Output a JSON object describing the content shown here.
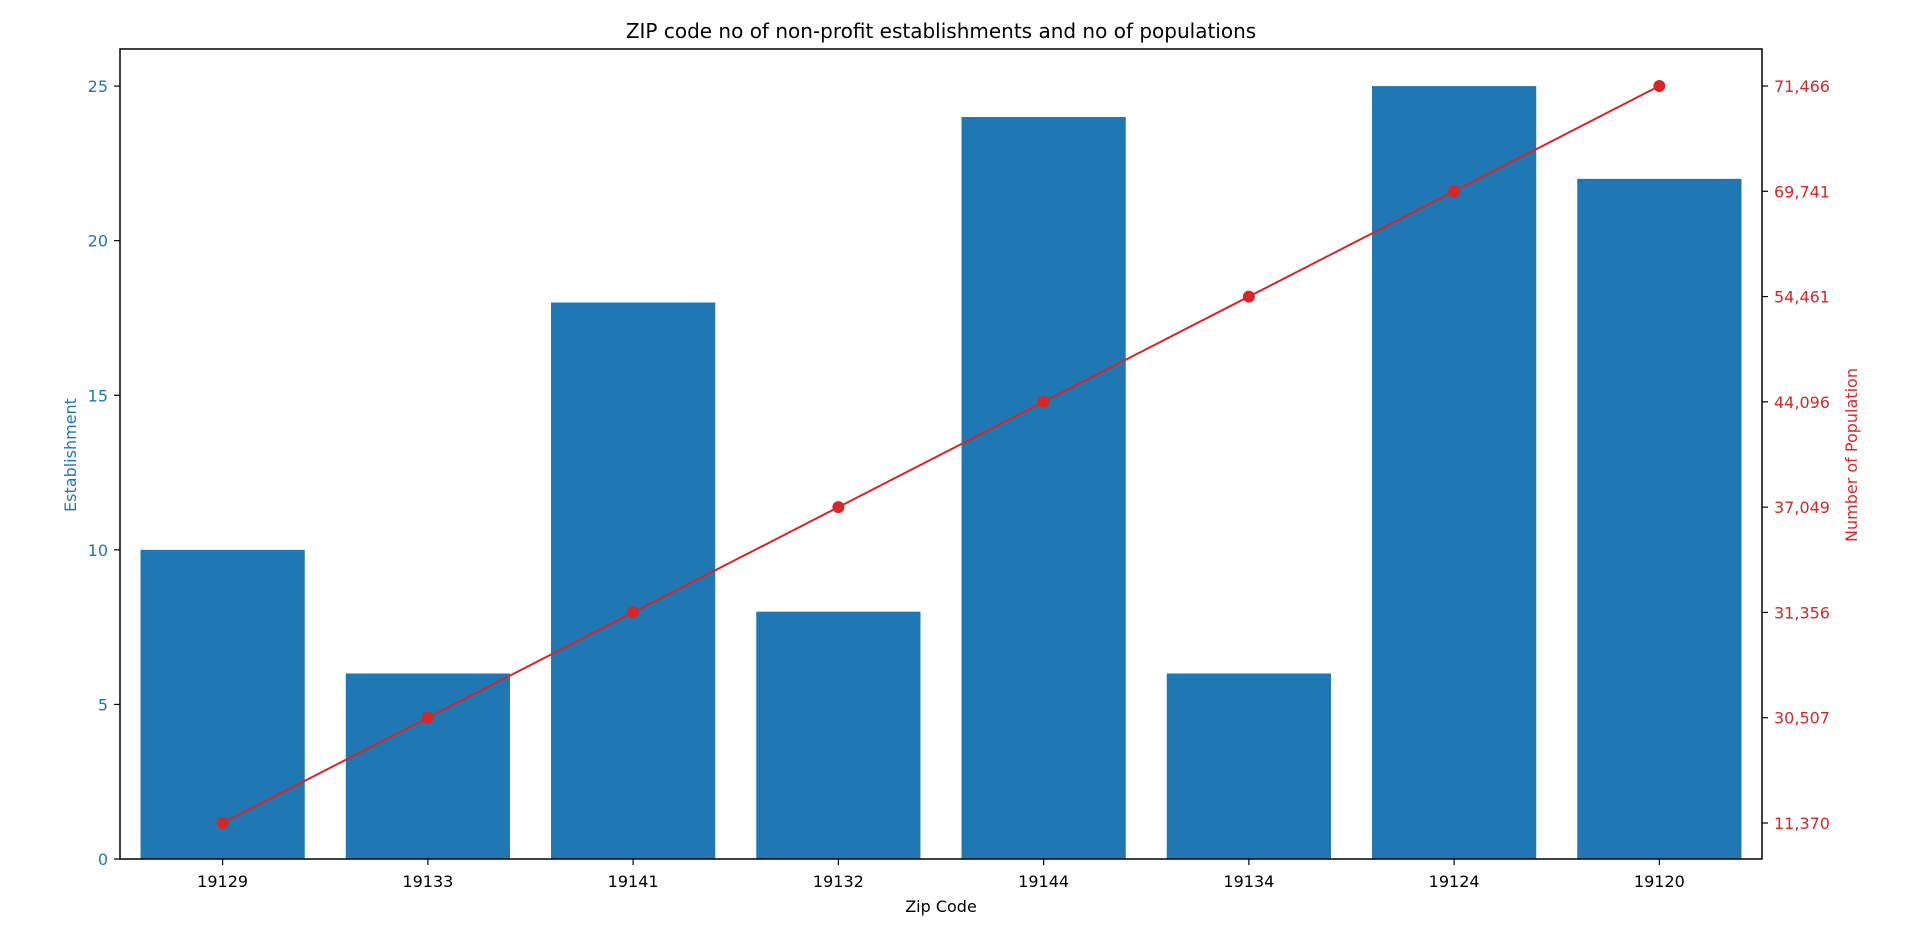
{
  "chart_data": {
    "type": "bar",
    "title": "ZIP code no of non-profit establishments and no of populations",
    "xlabel": "Zip Code",
    "ylabel": "Establishment",
    "ylabel_right": "Number of Population",
    "categories": [
      "19129",
      "19133",
      "19141",
      "19132",
      "19144",
      "19134",
      "19124",
      "19120"
    ],
    "ylim": [
      0,
      26.2
    ],
    "yticks": [
      "0",
      "5",
      "10",
      "15",
      "20",
      "25"
    ],
    "series": [
      {
        "type": "bar",
        "values": [
          10,
          6,
          18,
          8,
          24,
          6,
          25,
          22
        ],
        "color": "#1f77b4",
        "axis": "left"
      },
      {
        "type": "line",
        "values": [
          11370,
          30507,
          31356,
          37049,
          44096,
          54461,
          69741,
          71466
        ],
        "color": "#d62728",
        "axis": "right"
      }
    ],
    "right_axis_tick_labels": [
      "11,370",
      "30,507",
      "31,356",
      "37,049",
      "44,096",
      "54,461",
      "69,741",
      "71,466"
    ],
    "grid": false,
    "colors": {
      "left_axis": "#1f77b4",
      "right_axis": "#d62728",
      "frame": "#000000"
    }
  }
}
